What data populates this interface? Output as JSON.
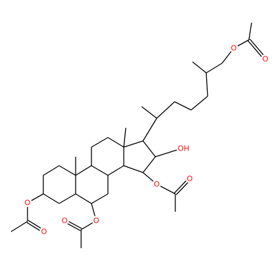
{
  "atom_labels": [
    "O",
    "O",
    "O",
    "O",
    "O",
    "O",
    "OH",
    "O",
    "O"
  ]
}
